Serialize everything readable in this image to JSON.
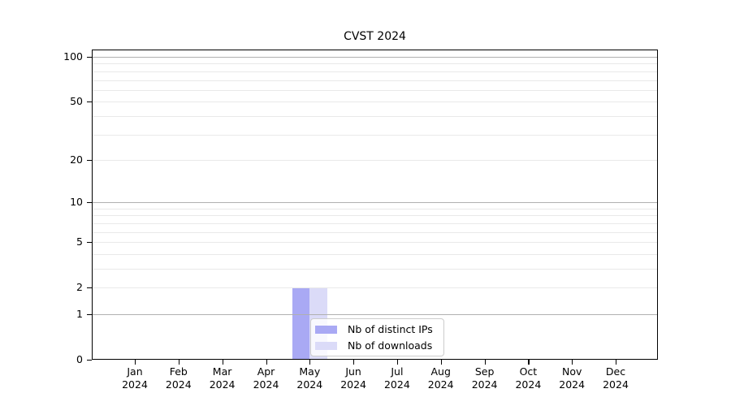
{
  "title": "CVST 2024",
  "legend": {
    "items": [
      {
        "label": "Nb of distinct IPs",
        "color": "#a9a9f4"
      },
      {
        "label": "Nb of downloads",
        "color": "#dbdbf8"
      }
    ]
  },
  "colors": {
    "axis": "#000000",
    "grid_major": "#b0b0b0",
    "grid_minor": "#e9e9e9",
    "bar_distinct_ips": "#a9a9f4",
    "bar_downloads": "#dbdbf8"
  },
  "chart_data": {
    "type": "bar",
    "title": "CVST 2024",
    "categories": [
      "Jan 2024",
      "Feb 2024",
      "Mar 2024",
      "Apr 2024",
      "May 2024",
      "Jun 2024",
      "Jul 2024",
      "Aug 2024",
      "Sep 2024",
      "Oct 2024",
      "Nov 2024",
      "Dec 2024"
    ],
    "series": [
      {
        "name": "Nb of distinct IPs",
        "color": "#a9a9f4",
        "values": [
          0,
          0,
          0,
          0,
          2,
          0,
          0,
          0,
          0,
          0,
          0,
          0
        ]
      },
      {
        "name": "Nb of downloads",
        "color": "#dbdbf8",
        "values": [
          0,
          0,
          0,
          0,
          2,
          0,
          0,
          0,
          0,
          0,
          0,
          0
        ]
      }
    ],
    "xlabel": "",
    "ylabel": "",
    "y_scale": "log1p",
    "ylim": [
      0,
      112
    ],
    "y_ticks": [
      0,
      1,
      2,
      5,
      10,
      20,
      50,
      100
    ],
    "y_major_grid": [
      1,
      10,
      100
    ],
    "y_minor_grid": [
      2,
      3,
      4,
      5,
      6,
      7,
      8,
      9,
      20,
      30,
      40,
      50,
      60,
      70,
      80,
      90
    ],
    "grid": true,
    "legend_position": "inside-bottom-center"
  }
}
